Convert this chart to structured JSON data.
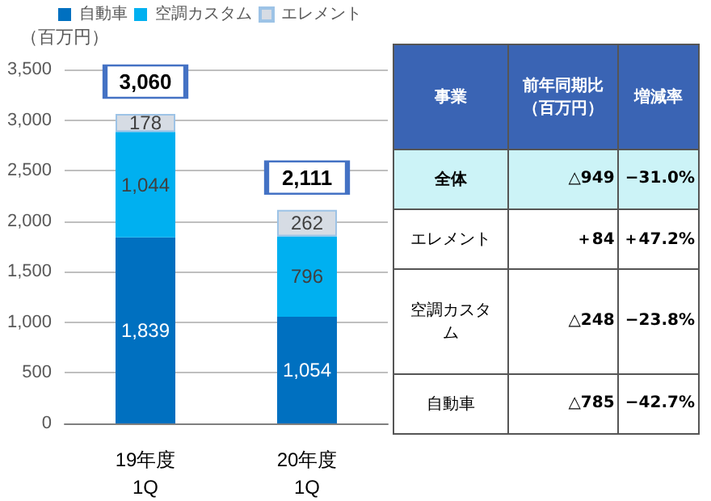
{
  "chart_data": [
    {
      "type": "bar",
      "stacked": true,
      "categories": [
        "19年度\n1Q",
        "20年度\n1Q"
      ],
      "ylabel": "（百万円）",
      "series": [
        {
          "name": "自動車",
          "color": "#0070c0",
          "values": [
            1839,
            1054
          ],
          "value_labels": [
            "1,839",
            "1,054"
          ]
        },
        {
          "name": "空調カスタム",
          "color": "#00b0f0",
          "values": [
            1044,
            796
          ],
          "value_labels": [
            "1,044",
            "796"
          ]
        },
        {
          "name": "エレメント",
          "color": "#d6dce4",
          "values": [
            178,
            262
          ],
          "value_labels": [
            "178",
            "262"
          ]
        }
      ],
      "totals": [
        "3,060",
        "2,111"
      ],
      "ylim": [
        0,
        3500
      ],
      "yticks": [
        0,
        500,
        {
          "value": 1000,
          "label": "1,000"
        },
        {
          "value": 1500,
          "label": "1,500"
        },
        {
          "value": 2000,
          "label": "2,000"
        },
        {
          "value": 2500,
          "label": "2,500"
        },
        {
          "value": 3000,
          "label": "3,000"
        },
        {
          "value": 3500,
          "label": "3,500"
        }
      ],
      "grid": "y",
      "legend": "top"
    },
    {
      "type": "other",
      "annotations": [
        "事業",
        "前年同期比（百万円）",
        "増減率",
        "全体",
        "△949",
        "−31.0%",
        "エレメント",
        "＋84",
        "＋47.2%",
        "空調カスタム",
        "△248",
        "−23.8%",
        "自動車",
        "△785",
        "−42.7%"
      ]
    }
  ]
}
